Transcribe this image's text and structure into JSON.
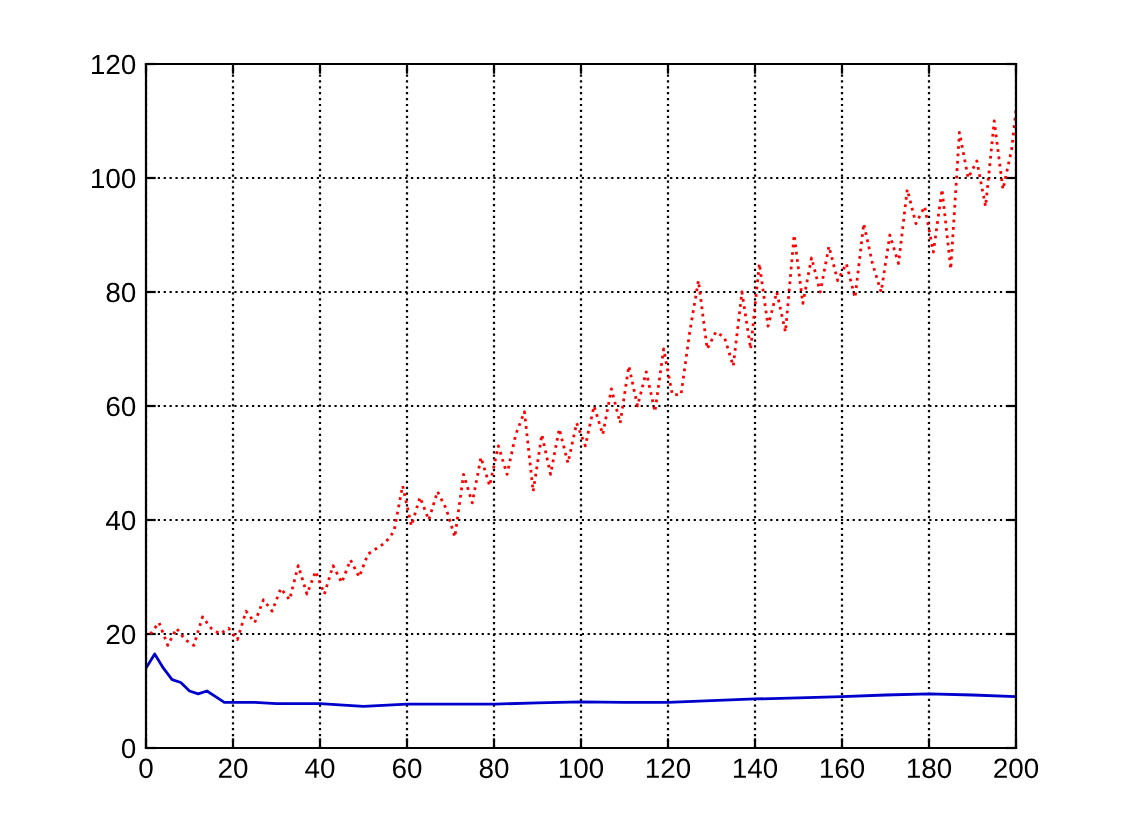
{
  "chart_data": {
    "type": "line",
    "xlim": [
      0,
      200
    ],
    "ylim": [
      0,
      120
    ],
    "xticks": [
      0,
      20,
      40,
      60,
      80,
      100,
      120,
      140,
      160,
      180,
      200
    ],
    "yticks": [
      0,
      20,
      40,
      60,
      80,
      100,
      120
    ],
    "grid": true,
    "legend": false,
    "series": [
      {
        "color": "#ff0000",
        "line_style": "dotted",
        "x": [
          1,
          3,
          5,
          7,
          9,
          11,
          13,
          15,
          17,
          19,
          21,
          23,
          25,
          27,
          29,
          31,
          33,
          35,
          37,
          39,
          41,
          43,
          45,
          47,
          49,
          51,
          53,
          55,
          57,
          59,
          61,
          63,
          65,
          67,
          69,
          71,
          73,
          75,
          77,
          79,
          81,
          83,
          85,
          87,
          89,
          91,
          93,
          95,
          97,
          99,
          101,
          103,
          105,
          107,
          109,
          111,
          113,
          115,
          117,
          119,
          121,
          123,
          125,
          127,
          129,
          131,
          133,
          135,
          137,
          139,
          141,
          143,
          145,
          147,
          149,
          151,
          153,
          155,
          157,
          159,
          161,
          163,
          165,
          167,
          169,
          171,
          173,
          175,
          177,
          179,
          181,
          183,
          185,
          187,
          189,
          191,
          193,
          195,
          197,
          199,
          200
        ],
        "values": [
          20,
          22,
          18,
          21,
          19,
          18,
          23,
          21,
          20,
          21,
          19,
          24,
          22,
          26,
          24,
          28,
          26,
          32,
          27,
          31,
          27,
          32,
          29,
          33,
          30,
          34,
          35,
          36,
          38,
          46,
          39,
          44,
          40,
          45,
          42,
          37,
          48,
          43,
          51,
          46,
          53,
          48,
          55,
          59,
          45,
          55,
          48,
          56,
          50,
          57,
          53,
          60,
          55,
          63,
          57,
          67,
          60,
          66,
          59,
          70,
          62,
          62,
          73,
          82,
          70,
          73,
          72,
          67,
          80,
          70,
          85,
          74,
          80,
          73,
          90,
          78,
          86,
          80,
          88,
          82,
          85,
          79,
          92,
          85,
          80,
          90,
          85,
          98,
          92,
          95,
          87,
          98,
          84,
          108,
          100,
          103,
          95,
          110,
          98,
          105,
          112
        ]
      },
      {
        "color": "#0000cc",
        "line_style": "solid",
        "x": [
          0,
          2,
          4,
          6,
          8,
          10,
          12,
          14,
          16,
          18,
          25,
          30,
          40,
          50,
          60,
          70,
          80,
          90,
          100,
          110,
          120,
          130,
          140,
          150,
          160,
          170,
          180,
          190,
          200
        ],
        "values": [
          14,
          16.5,
          14,
          12,
          11.5,
          10,
          9.5,
          10,
          9,
          8,
          8,
          7.8,
          7.8,
          7.3,
          7.7,
          7.7,
          7.7,
          7.9,
          8.1,
          8,
          8,
          8.3,
          8.6,
          8.8,
          9,
          9.3,
          9.5,
          9.3,
          9
        ]
      }
    ]
  }
}
